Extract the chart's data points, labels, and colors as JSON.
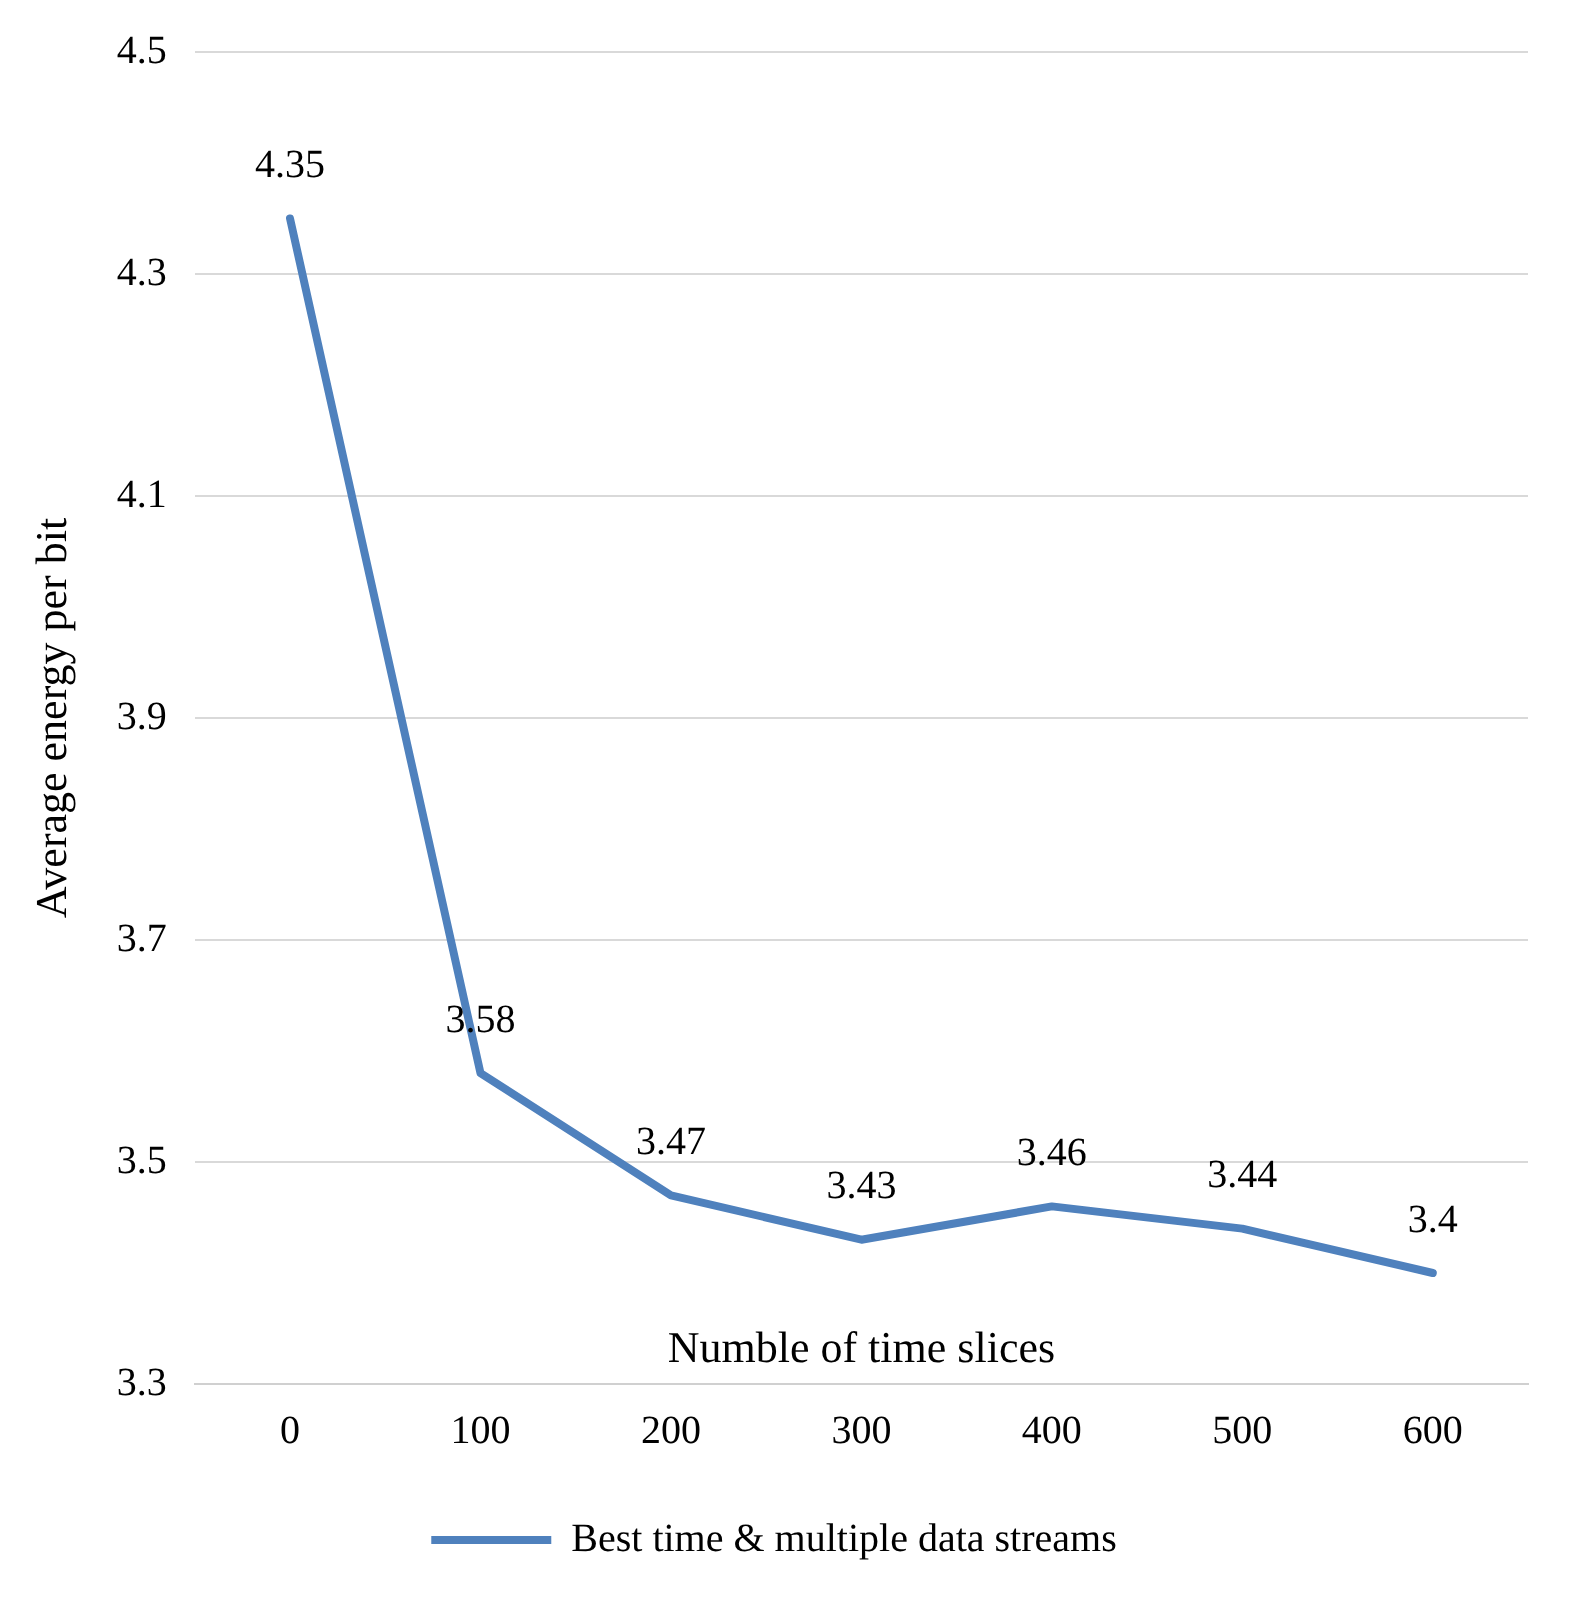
{
  "chart_data": {
    "type": "line",
    "xlabel": "Numble of time slices",
    "ylabel": "Average energy per bit",
    "categories": [
      "0",
      "100",
      "200",
      "300",
      "400",
      "500",
      "600"
    ],
    "series": [
      {
        "name": "Best time & multiple data streams",
        "color": "#4f81bd",
        "values": [
          4.35,
          3.58,
          3.47,
          3.43,
          3.46,
          3.44,
          3.4
        ]
      }
    ],
    "ylim": [
      3.3,
      4.5
    ],
    "yticks": [
      3.3,
      3.5,
      3.7,
      3.9,
      4.1,
      4.3,
      4.5
    ],
    "grid": "y",
    "legend": "bottom",
    "marker": "none",
    "line_style": "solid",
    "data_labels": true
  }
}
